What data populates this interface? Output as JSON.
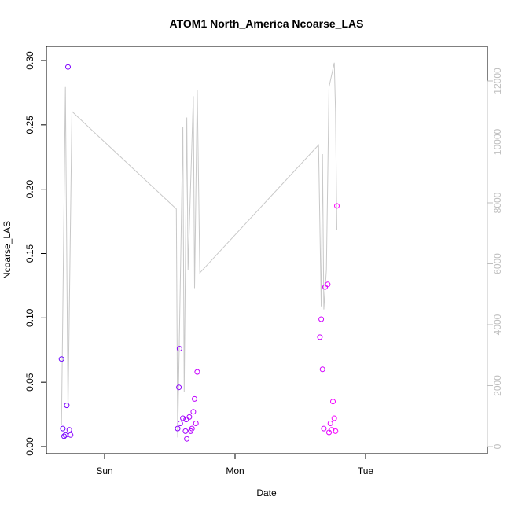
{
  "chart_data": {
    "type": "scatter",
    "title": "ATOM1 North_America Ncoarse_LAS",
    "xlabel": "Date",
    "ylabel": "Ncoarse_LAS",
    "x_unit": "days",
    "xlim": [
      -0.38,
      2.92
    ],
    "ylim": [
      0,
      0.3
    ],
    "y_ticks": [
      "0.00",
      "0.05",
      "0.10",
      "0.15",
      "0.20",
      "0.25",
      "0.30"
    ],
    "x_ticks": [
      {
        "label": "Sun",
        "value": 0
      },
      {
        "label": "Mon",
        "value": 1
      },
      {
        "label": "Tue",
        "value": 2
      }
    ],
    "y2lim": [
      0,
      12000
    ],
    "y2_ticks": [
      "0",
      "2000",
      "4000",
      "6000",
      "8000",
      "10000",
      "12000"
    ],
    "grid": false,
    "legend": "none",
    "colors": {
      "scatter_start": "#6a00ff",
      "scatter_end": "#ff00ff",
      "line": "#c8c8c8",
      "axis": "#000000",
      "right_axis": "#bfbfbf"
    },
    "points": [
      {
        "x": -0.33,
        "y": 0.068
      },
      {
        "x": -0.32,
        "y": 0.014
      },
      {
        "x": -0.31,
        "y": 0.008
      },
      {
        "x": -0.3,
        "y": 0.009
      },
      {
        "x": -0.29,
        "y": 0.032
      },
      {
        "x": -0.28,
        "y": 0.295
      },
      {
        "x": -0.27,
        "y": 0.013
      },
      {
        "x": -0.26,
        "y": 0.009
      },
      {
        "x": 0.56,
        "y": 0.014
      },
      {
        "x": 0.57,
        "y": 0.046
      },
      {
        "x": 0.575,
        "y": 0.076
      },
      {
        "x": 0.58,
        "y": 0.018
      },
      {
        "x": 0.6,
        "y": 0.022
      },
      {
        "x": 0.62,
        "y": 0.012
      },
      {
        "x": 0.625,
        "y": 0.021
      },
      {
        "x": 0.63,
        "y": 0.006
      },
      {
        "x": 0.65,
        "y": 0.023
      },
      {
        "x": 0.66,
        "y": 0.012
      },
      {
        "x": 0.67,
        "y": 0.014
      },
      {
        "x": 0.68,
        "y": 0.027
      },
      {
        "x": 0.69,
        "y": 0.037
      },
      {
        "x": 0.7,
        "y": 0.018
      },
      {
        "x": 0.71,
        "y": 0.058
      },
      {
        "x": 1.65,
        "y": 0.085
      },
      {
        "x": 1.66,
        "y": 0.099
      },
      {
        "x": 1.67,
        "y": 0.06
      },
      {
        "x": 1.68,
        "y": 0.014
      },
      {
        "x": 1.69,
        "y": 0.124
      },
      {
        "x": 1.71,
        "y": 0.126
      },
      {
        "x": 1.72,
        "y": 0.011
      },
      {
        "x": 1.73,
        "y": 0.018
      },
      {
        "x": 1.74,
        "y": 0.013
      },
      {
        "x": 1.75,
        "y": 0.035
      },
      {
        "x": 1.76,
        "y": 0.022
      },
      {
        "x": 1.77,
        "y": 0.012
      },
      {
        "x": 1.78,
        "y": 0.187
      }
    ],
    "line_series": [
      [
        -0.33,
        700
      ],
      [
        -0.3,
        11800
      ],
      [
        -0.28,
        1200
      ],
      [
        -0.25,
        11000
      ],
      [
        0.55,
        7800
      ],
      [
        0.56,
        300
      ],
      [
        0.585,
        6500
      ],
      [
        0.6,
        10500
      ],
      [
        0.61,
        1800
      ],
      [
        0.63,
        10800
      ],
      [
        0.64,
        5800
      ],
      [
        0.68,
        11500
      ],
      [
        0.69,
        5200
      ],
      [
        0.71,
        11700
      ],
      [
        0.73,
        5700
      ],
      [
        1.64,
        9900
      ],
      [
        1.66,
        4600
      ],
      [
        1.67,
        9600
      ],
      [
        1.68,
        4500
      ],
      [
        1.7,
        5800
      ],
      [
        1.72,
        11800
      ],
      [
        1.76,
        12600
      ],
      [
        1.77,
        11000
      ],
      [
        1.78,
        7100
      ]
    ]
  }
}
